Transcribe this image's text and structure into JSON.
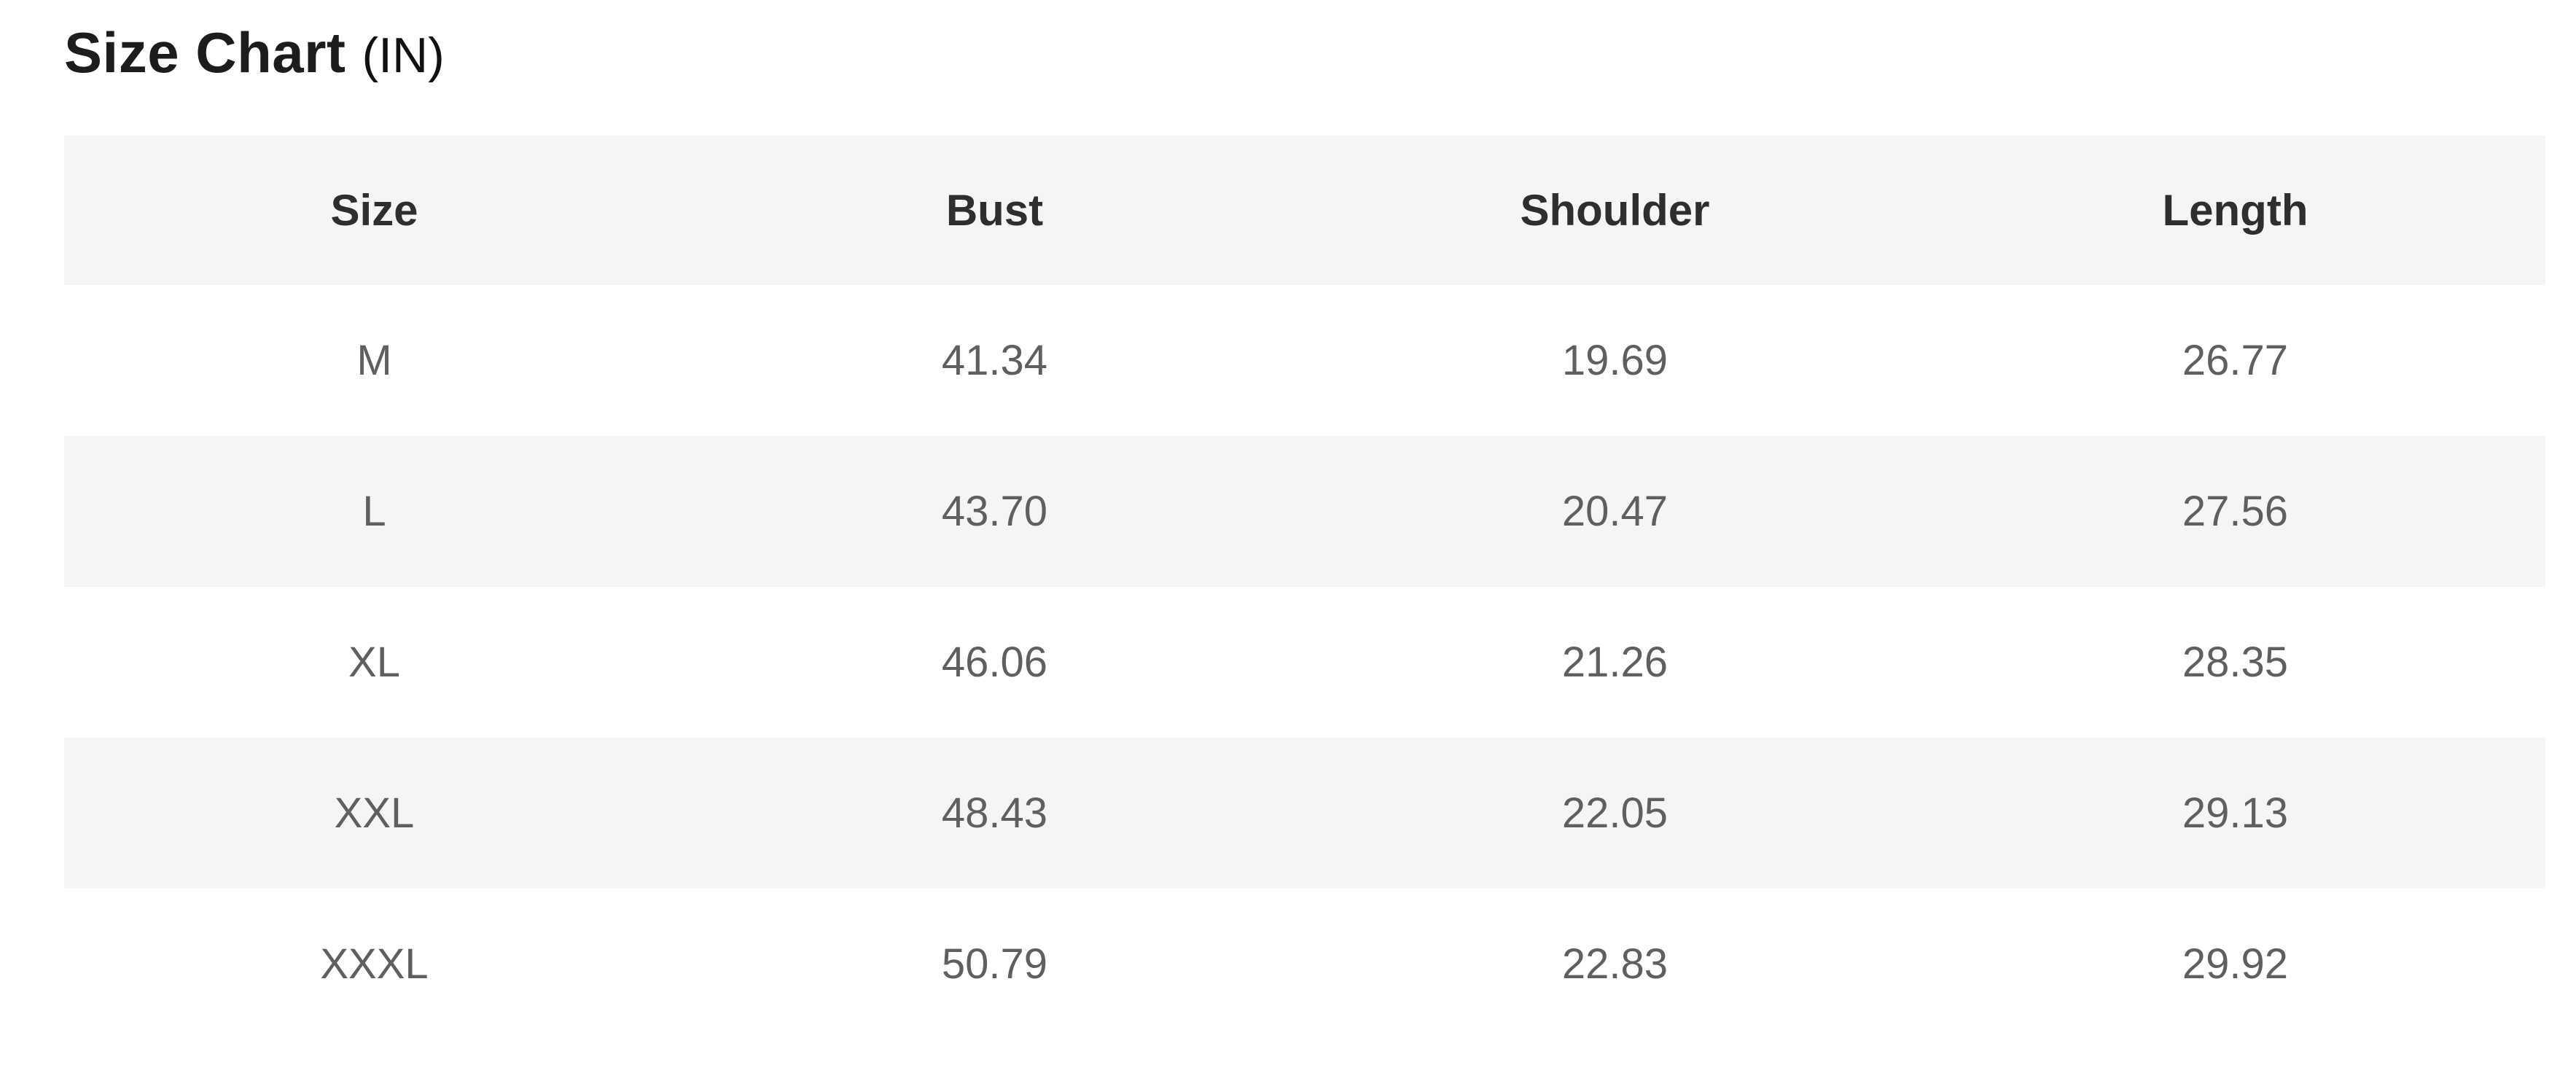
{
  "title": {
    "text": "Size Chart",
    "unit": "(IN)"
  },
  "colors": {
    "header_row_bg": "#f5f5f6",
    "stripe_row_bg": "#f5f5f6",
    "plain_row_bg": "#ffffff",
    "header_text": "#2e2e2e",
    "cell_text": "#5f5f5f",
    "title_text": "#1c1c1c"
  },
  "table": {
    "headers": [
      "Size",
      "Bust",
      "Shoulder",
      "Length"
    ],
    "rows": [
      [
        "M",
        "41.34",
        "19.69",
        "26.77"
      ],
      [
        "L",
        "43.70",
        "20.47",
        "27.56"
      ],
      [
        "XL",
        "46.06",
        "21.26",
        "28.35"
      ],
      [
        "XXL",
        "48.43",
        "22.05",
        "29.13"
      ],
      [
        "XXXL",
        "50.79",
        "22.83",
        "29.92"
      ]
    ]
  },
  "chart_data": {
    "type": "table",
    "title": "Size Chart (IN)",
    "unit": "IN",
    "columns": [
      "Size",
      "Bust",
      "Shoulder",
      "Length"
    ],
    "rows": [
      {
        "Size": "M",
        "Bust": 41.34,
        "Shoulder": 19.69,
        "Length": 26.77
      },
      {
        "Size": "L",
        "Bust": 43.7,
        "Shoulder": 20.47,
        "Length": 27.56
      },
      {
        "Size": "XL",
        "Bust": 46.06,
        "Shoulder": 21.26,
        "Length": 28.35
      },
      {
        "Size": "XXL",
        "Bust": 48.43,
        "Shoulder": 22.05,
        "Length": 29.13
      },
      {
        "Size": "XXXL",
        "Bust": 50.79,
        "Shoulder": 22.83,
        "Length": 29.92
      }
    ]
  }
}
